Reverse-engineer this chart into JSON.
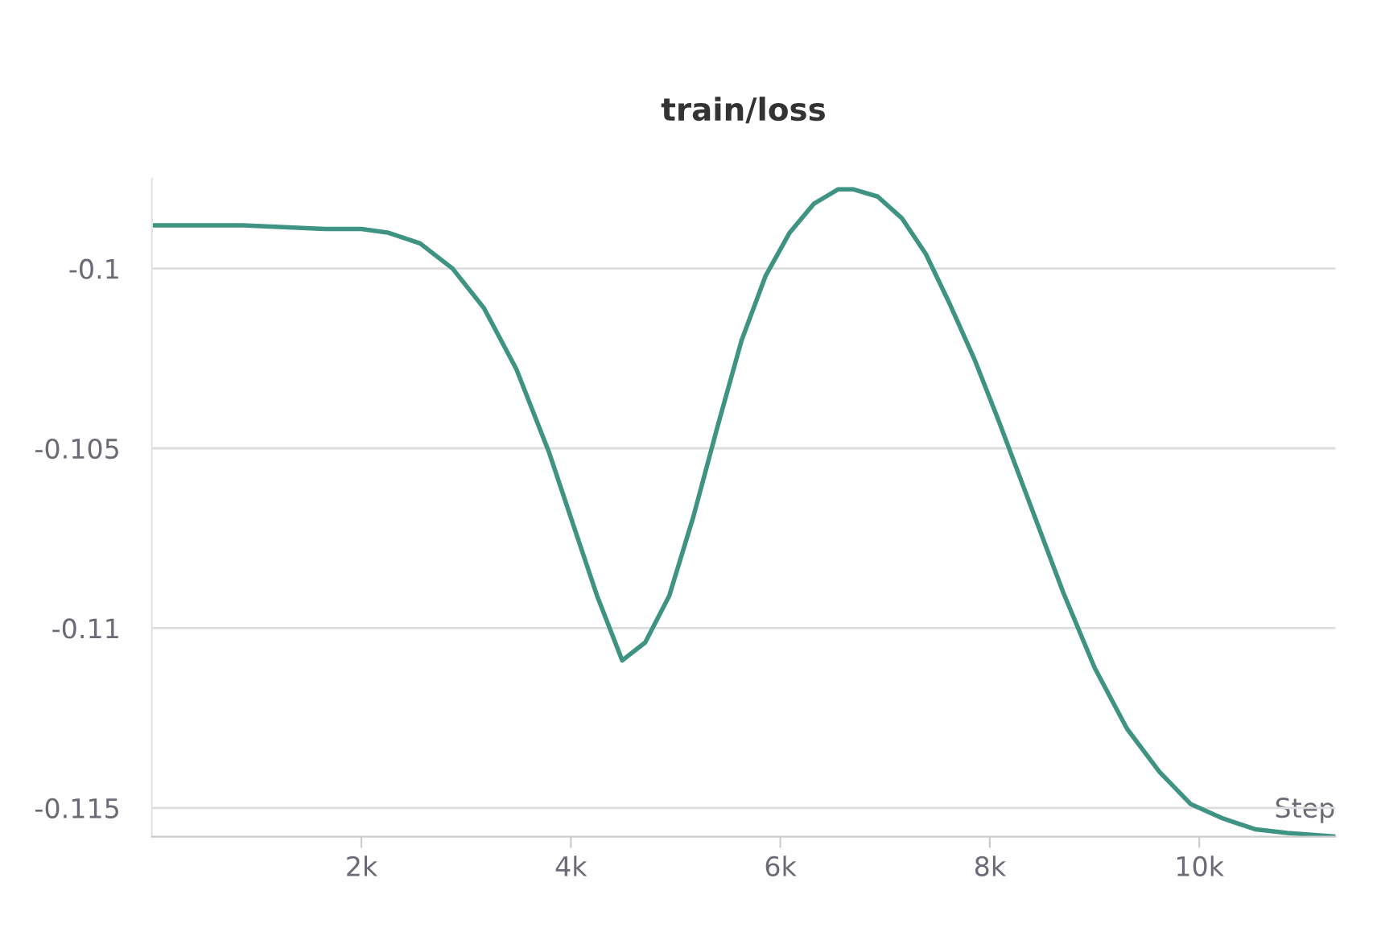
{
  "chart_data": {
    "type": "line",
    "title": "train/loss",
    "xlabel": "Step",
    "x": [
      30,
      870,
      1650,
      2000,
      2250,
      2560,
      2870,
      3170,
      3480,
      3790,
      4020,
      4250,
      4490,
      4710,
      4940,
      5170,
      5400,
      5630,
      5860,
      6090,
      6320,
      6550,
      6700,
      6930,
      7160,
      7390,
      7620,
      7850,
      8080,
      8390,
      8700,
      9000,
      9310,
      9620,
      9920,
      10230,
      10540,
      10840,
      11300
    ],
    "series": [
      {
        "color": "#3f9382",
        "values": [
          -0.0988,
          -0.0988,
          -0.0989,
          -0.0989,
          -0.099,
          -0.0993,
          -0.1,
          -0.1011,
          -0.1028,
          -0.1051,
          -0.1071,
          -0.1091,
          -0.1109,
          -0.1104,
          -0.1091,
          -0.1069,
          -0.1044,
          -0.102,
          -0.1002,
          -0.099,
          -0.0982,
          -0.0978,
          -0.0978,
          -0.098,
          -0.0986,
          -0.0996,
          -0.101,
          -0.1025,
          -0.1042,
          -0.1066,
          -0.109,
          -0.1111,
          -0.1128,
          -0.114,
          -0.1149,
          -0.1153,
          -0.1156,
          -0.1157,
          -0.1158
        ]
      }
    ],
    "xlim": [
      0,
      11300
    ],
    "xticks": [
      {
        "value": 2000,
        "label": "2k"
      },
      {
        "value": 4000,
        "label": "4k"
      },
      {
        "value": 6000,
        "label": "6k"
      },
      {
        "value": 8000,
        "label": "8k"
      },
      {
        "value": 10000,
        "label": "10k"
      }
    ],
    "ylim": [
      -0.1158,
      -0.0975
    ],
    "yticks": [
      -0.1,
      -0.105,
      -0.11,
      -0.115
    ],
    "grid": "y",
    "legend": false,
    "marker": "none",
    "line_style": "solid"
  }
}
